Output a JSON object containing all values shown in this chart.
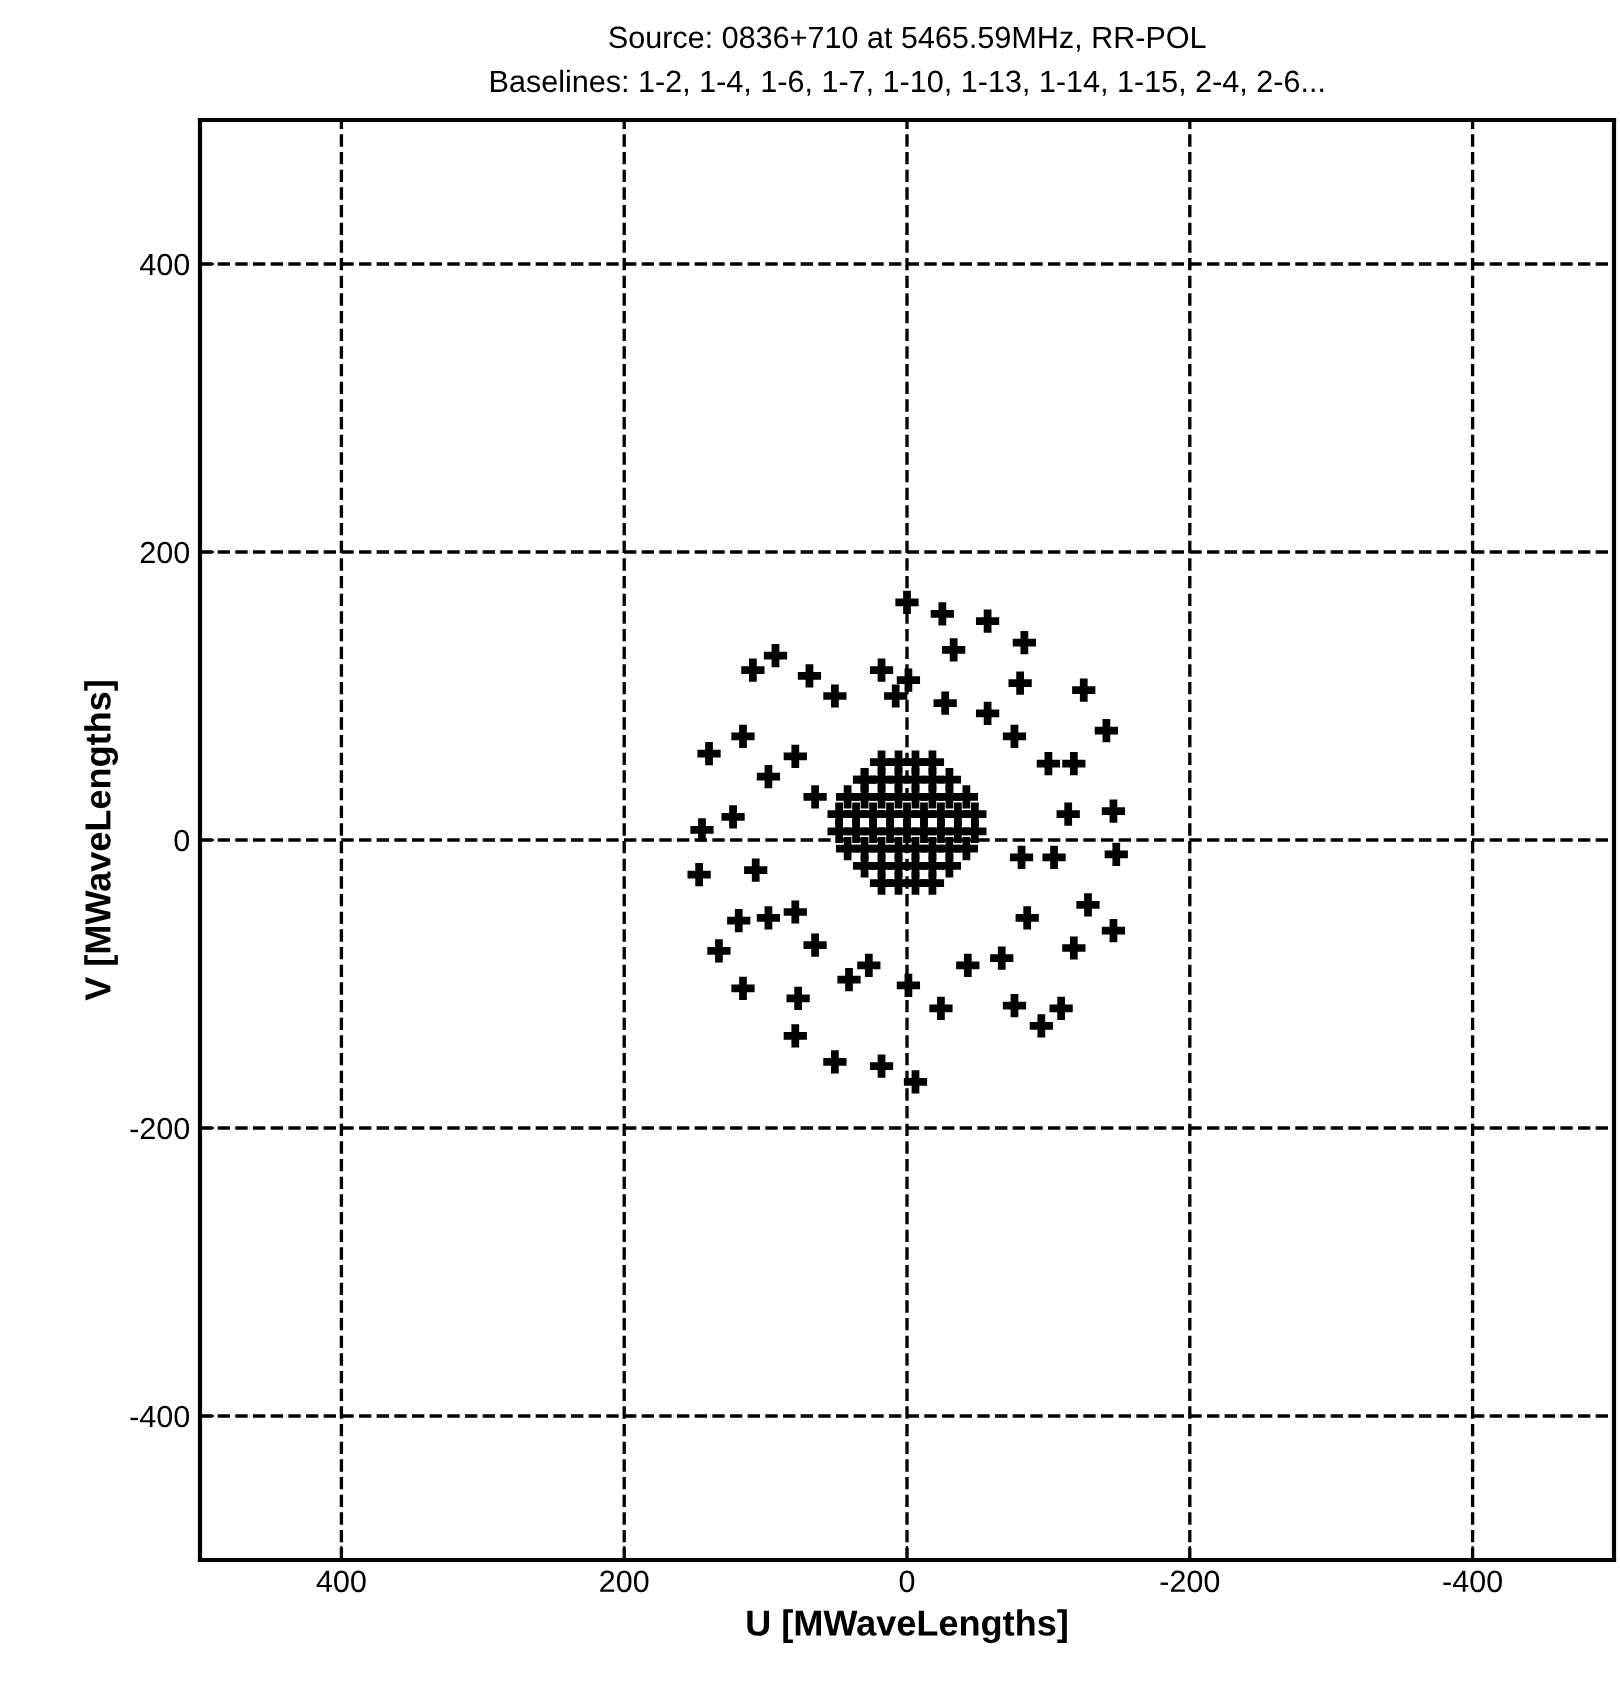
{
  "chart_data": {
    "type": "scatter",
    "title": "Source: 0836+710 at 5465.59MHz, RR-POL",
    "subtitle": "Baselines: 1-2, 1-4, 1-6, 1-7, 1-10, 1-13, 1-14, 1-15, 2-4, 2-6...",
    "xlabel": "U [MWaveLengths]",
    "ylabel": "V [MWaveLengths]",
    "xlim": [
      500,
      -500
    ],
    "ylim": [
      -500,
      500
    ],
    "xticks": [
      400,
      200,
      0,
      -200,
      -400
    ],
    "yticks": [
      -400,
      -200,
      0,
      200,
      400
    ],
    "grid": true,
    "marker": "cross",
    "line_style": "dashed",
    "series": [
      {
        "color": "#000000",
        "x": [
          0,
          -25,
          -57,
          -33,
          -83,
          -80,
          -125,
          -141,
          -118,
          -146,
          -114,
          -148,
          -128,
          -146,
          -118,
          -109,
          -95,
          -76,
          -67,
          -24,
          -6,
          18,
          51,
          79,
          77,
          116,
          133,
          119,
          147,
          107,
          145,
          140,
          116,
          109,
          93,
          69,
          51,
          18,
          -1,
          -27,
          -57,
          -76,
          -100,
          79,
          98,
          123,
          65,
          79,
          65,
          27,
          -1,
          -43,
          -85,
          -104,
          -81,
          41,
          98,
          8,
          -18,
          -6,
          6,
          18,
          30,
          -30,
          -18,
          -6,
          6,
          18,
          30,
          -42,
          -30,
          -18,
          -6,
          6,
          18,
          30,
          42,
          -48,
          -36,
          -24,
          -12,
          0,
          12,
          24,
          36,
          48,
          -48,
          -36,
          -24,
          -12,
          0,
          12,
          24,
          36,
          48,
          -42,
          -30,
          -18,
          -6,
          6,
          18,
          30,
          42,
          -30,
          -18,
          -6,
          6,
          18,
          30,
          -18,
          -6,
          6,
          18
        ],
        "values": [
          165,
          157,
          152,
          132,
          137,
          109,
          104,
          76,
          53,
          20,
          18,
          -10,
          -45,
          -63,
          -75,
          -117,
          -129,
          -115,
          -82,
          -117,
          -168,
          -157,
          -154,
          -136,
          -110,
          -103,
          -77,
          -56,
          -24,
          -21,
          7,
          60,
          72,
          118,
          128,
          114,
          100,
          118,
          111,
          95,
          88,
          72,
          53,
          58,
          44,
          16,
          30,
          -50,
          -73,
          -87,
          -101,
          -87,
          -54,
          -12,
          -12,
          -97,
          -54,
          100,
          54,
          54,
          54,
          54,
          42,
          42,
          42,
          42,
          42,
          42,
          42,
          30,
          30,
          30,
          30,
          30,
          30,
          30,
          30,
          18,
          18,
          18,
          18,
          18,
          18,
          18,
          18,
          18,
          6,
          6,
          6,
          6,
          6,
          6,
          6,
          6,
          6,
          -6,
          -6,
          -6,
          -6,
          -6,
          -6,
          -6,
          -6,
          -18,
          -18,
          -18,
          -18,
          -18,
          -18,
          -30,
          -30,
          -30,
          -30
        ]
      }
    ]
  }
}
